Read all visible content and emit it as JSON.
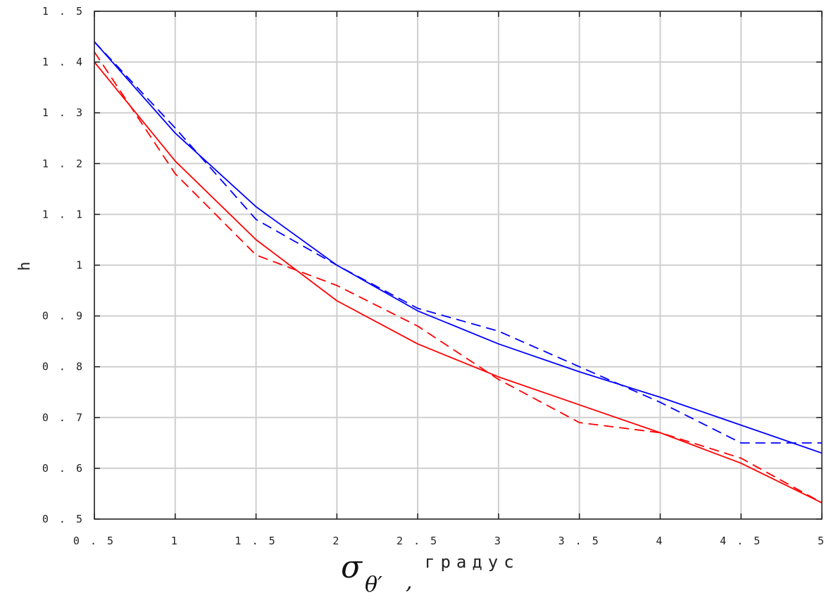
{
  "chart_data": {
    "type": "line",
    "ylabel": "h",
    "xlabel": {
      "symbol": "σ",
      "subscript": "θ′",
      "separator": ",",
      "unit": "градус"
    },
    "xlim": [
      0.5,
      5
    ],
    "ylim": [
      0.5,
      1.5
    ],
    "xticks": [
      0.5,
      1,
      1.5,
      2,
      2.5,
      3,
      3.5,
      4,
      4.5,
      5
    ],
    "xtick_labels": [
      "0.5",
      "1",
      "1.5",
      "2",
      "2.5",
      "3",
      "3.5",
      "4",
      "4.5",
      "5"
    ],
    "yticks": [
      0.5,
      0.6,
      0.7,
      0.8,
      0.9,
      1.0,
      1.1,
      1.2,
      1.3,
      1.4,
      1.5
    ],
    "ytick_labels": [
      "0.5",
      "0.6",
      "0.7",
      "0.8",
      "0.9",
      "1",
      "1.1",
      "1.2",
      "1.3",
      "1.4",
      "1.5"
    ],
    "grid": true,
    "series": [
      {
        "color": "#0000ff",
        "style": "solid",
        "x": [
          0.5,
          1,
          1.5,
          2,
          2.5,
          3,
          3.5,
          4,
          4.5,
          5
        ],
        "y": [
          1.44,
          1.26,
          1.115,
          1.0,
          0.91,
          0.845,
          0.79,
          0.74,
          0.685,
          0.63
        ]
      },
      {
        "color": "#0000ff",
        "style": "dashed",
        "x": [
          0.5,
          1,
          1.5,
          2,
          2.5,
          3,
          3.5,
          4,
          4.5,
          5
        ],
        "y": [
          1.44,
          1.27,
          1.09,
          1.0,
          0.915,
          0.87,
          0.8,
          0.73,
          0.65,
          0.65
        ]
      },
      {
        "color": "#ff0000",
        "style": "solid",
        "x": [
          0.5,
          1,
          1.5,
          2,
          2.5,
          3,
          3.5,
          4,
          4.5,
          5
        ],
        "y": [
          1.4,
          1.205,
          1.05,
          0.93,
          0.845,
          0.78,
          0.725,
          0.67,
          0.61,
          0.532
        ]
      },
      {
        "color": "#ff0000",
        "style": "dashed",
        "x": [
          0.5,
          1,
          1.5,
          2,
          2.5,
          3,
          3.5,
          4,
          4.5,
          5
        ],
        "y": [
          1.42,
          1.18,
          1.02,
          0.96,
          0.88,
          0.775,
          0.69,
          0.67,
          0.62,
          0.532
        ]
      }
    ]
  }
}
